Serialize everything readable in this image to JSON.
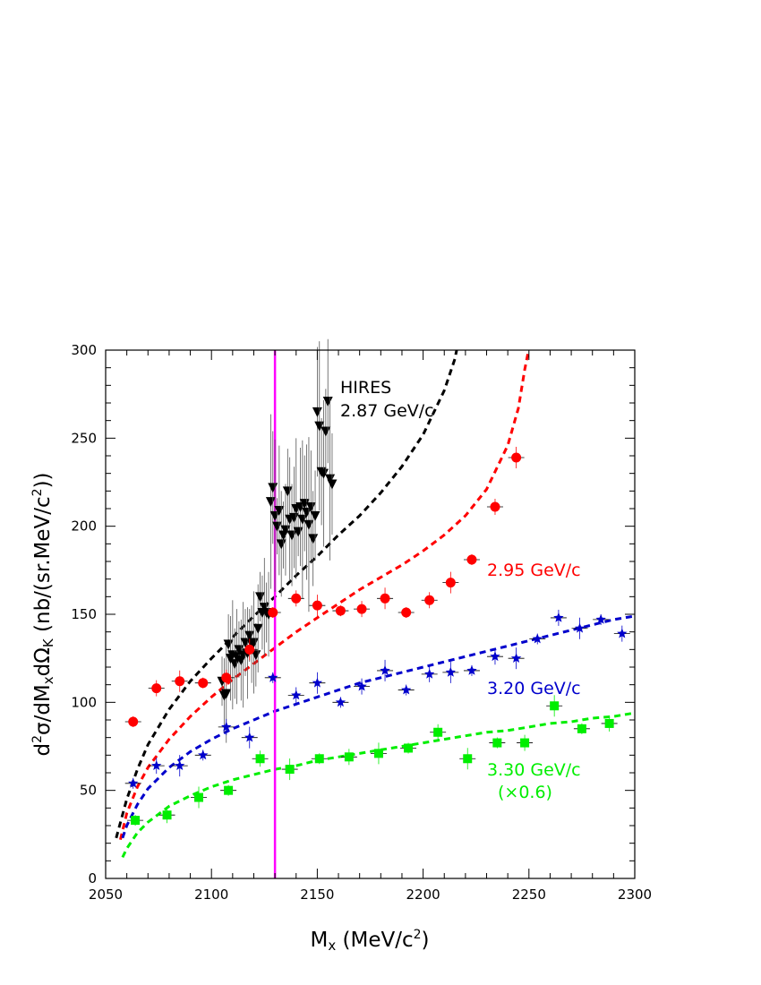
{
  "chart_data": {
    "type": "scatter",
    "xlabel": "M_x (MeV/c²)",
    "ylabel": "d²σ/dM_xdΩ_K (nb/(sr.MeV/c²))",
    "xlim": [
      2050,
      2300
    ],
    "ylim": [
      0,
      300
    ],
    "xticks": [
      2050,
      2100,
      2150,
      2200,
      2250,
      2300
    ],
    "yticks": [
      0,
      50,
      100,
      150,
      200,
      250,
      300
    ],
    "grid": false,
    "vline": {
      "x": 2130,
      "color": "#ff00ff"
    },
    "series": [
      {
        "name": "HIRES 2.87 GeV/c",
        "marker": "triangle-down",
        "color": "#000000",
        "label_lines": [
          "HIRES",
          "2.87 GeV/c"
        ],
        "points": [
          [
            2105,
            112
          ],
          [
            2106,
            104
          ],
          [
            2107,
            105
          ],
          [
            2108,
            133
          ],
          [
            2109,
            125
          ],
          [
            2110,
            127
          ],
          [
            2111,
            122
          ],
          [
            2112,
            126
          ],
          [
            2113,
            130
          ],
          [
            2114,
            124
          ],
          [
            2115,
            127
          ],
          [
            2116,
            134
          ],
          [
            2117,
            128
          ],
          [
            2118,
            138
          ],
          [
            2119,
            133
          ],
          [
            2120,
            134
          ],
          [
            2121,
            127
          ],
          [
            2122,
            142
          ],
          [
            2123,
            160
          ],
          [
            2124,
            151
          ],
          [
            2125,
            154
          ],
          [
            2126,
            151
          ],
          [
            2127,
            150
          ],
          [
            2128,
            214
          ],
          [
            2129,
            222
          ],
          [
            2130,
            206
          ],
          [
            2131,
            200
          ],
          [
            2132,
            209
          ],
          [
            2133,
            190
          ],
          [
            2134,
            195
          ],
          [
            2135,
            198
          ],
          [
            2136,
            220
          ],
          [
            2137,
            204
          ],
          [
            2138,
            195
          ],
          [
            2139,
            205
          ],
          [
            2140,
            210
          ],
          [
            2141,
            197
          ],
          [
            2142,
            211
          ],
          [
            2143,
            204
          ],
          [
            2144,
            213
          ],
          [
            2145,
            208
          ],
          [
            2146,
            201
          ],
          [
            2147,
            211
          ],
          [
            2148,
            193
          ],
          [
            2149,
            206
          ],
          [
            2150,
            265
          ],
          [
            2151,
            257
          ],
          [
            2152,
            231
          ],
          [
            2153,
            230
          ],
          [
            2154,
            254
          ],
          [
            2155,
            271
          ],
          [
            2156,
            227
          ],
          [
            2157,
            224
          ]
        ],
        "model_curve": [
          [
            2055,
            23
          ],
          [
            2060,
            45
          ],
          [
            2065,
            62
          ],
          [
            2070,
            76
          ],
          [
            2080,
            96
          ],
          [
            2090,
            112
          ],
          [
            2100,
            125
          ],
          [
            2110,
            137
          ],
          [
            2120,
            149
          ],
          [
            2130,
            160
          ],
          [
            2140,
            172
          ],
          [
            2150,
            183
          ],
          [
            2160,
            195
          ],
          [
            2170,
            206
          ],
          [
            2180,
            219
          ],
          [
            2190,
            234
          ],
          [
            2200,
            252
          ],
          [
            2210,
            277
          ],
          [
            2215,
            295
          ],
          [
            2220,
            325
          ],
          [
            2222,
            347
          ]
        ]
      },
      {
        "name": "2.95 GeV/c",
        "marker": "circle",
        "color": "#ff0000",
        "points": [
          [
            2063,
            89
          ],
          [
            2074,
            108
          ],
          [
            2085,
            112
          ],
          [
            2096,
            111
          ],
          [
            2107,
            114
          ],
          [
            2118,
            130
          ],
          [
            2129,
            151
          ],
          [
            2140,
            159
          ],
          [
            2150,
            155
          ],
          [
            2161,
            152
          ],
          [
            2171,
            153
          ],
          [
            2182,
            159
          ],
          [
            2192,
            151
          ],
          [
            2203,
            158
          ],
          [
            2213,
            168
          ],
          [
            2223,
            181
          ],
          [
            2234,
            211
          ],
          [
            2244,
            239
          ]
        ],
        "model_curve": [
          [
            2057,
            22
          ],
          [
            2060,
            37
          ],
          [
            2065,
            52
          ],
          [
            2070,
            63
          ],
          [
            2080,
            79
          ],
          [
            2090,
            92
          ],
          [
            2100,
            103
          ],
          [
            2110,
            113
          ],
          [
            2120,
            122
          ],
          [
            2130,
            131
          ],
          [
            2140,
            140
          ],
          [
            2150,
            148
          ],
          [
            2160,
            156
          ],
          [
            2170,
            164
          ],
          [
            2180,
            171
          ],
          [
            2190,
            178
          ],
          [
            2200,
            186
          ],
          [
            2210,
            195
          ],
          [
            2220,
            206
          ],
          [
            2230,
            221
          ],
          [
            2240,
            246
          ],
          [
            2245,
            267
          ],
          [
            2248,
            289
          ],
          [
            2250,
            301
          ]
        ]
      },
      {
        "name": "3.20 GeV/c",
        "marker": "star",
        "color": "#0000cc",
        "points": [
          [
            2063,
            54
          ],
          [
            2074,
            64
          ],
          [
            2085,
            64
          ],
          [
            2096,
            70
          ],
          [
            2107,
            86
          ],
          [
            2118,
            80
          ],
          [
            2129,
            114
          ],
          [
            2140,
            104
          ],
          [
            2150,
            111
          ],
          [
            2161,
            100
          ],
          [
            2171,
            109
          ],
          [
            2182,
            118
          ],
          [
            2192,
            107
          ],
          [
            2203,
            116
          ],
          [
            2213,
            117
          ],
          [
            2223,
            118
          ],
          [
            2234,
            126
          ],
          [
            2244,
            125
          ],
          [
            2254,
            136
          ],
          [
            2264,
            148
          ],
          [
            2274,
            142
          ],
          [
            2284,
            147
          ],
          [
            2294,
            139
          ]
        ],
        "model_curve": [
          [
            2058,
            23
          ],
          [
            2060,
            30
          ],
          [
            2065,
            42
          ],
          [
            2070,
            51
          ],
          [
            2080,
            63
          ],
          [
            2090,
            72
          ],
          [
            2100,
            79
          ],
          [
            2110,
            85
          ],
          [
            2120,
            90
          ],
          [
            2130,
            95
          ],
          [
            2140,
            99
          ],
          [
            2150,
            103
          ],
          [
            2160,
            107
          ],
          [
            2170,
            111
          ],
          [
            2180,
            114
          ],
          [
            2190,
            117
          ],
          [
            2200,
            120
          ],
          [
            2210,
            123
          ],
          [
            2220,
            126
          ],
          [
            2230,
            129
          ],
          [
            2240,
            132
          ],
          [
            2250,
            135
          ],
          [
            2260,
            138
          ],
          [
            2270,
            141
          ],
          [
            2280,
            144
          ],
          [
            2290,
            147
          ],
          [
            2300,
            149
          ]
        ]
      },
      {
        "name": "3.30 GeV/c (×0.6)",
        "marker": "square",
        "color": "#00ee00",
        "label_lines": [
          "3.30 GeV/c",
          "(×0.6)"
        ],
        "points": [
          [
            2064,
            33
          ],
          [
            2079,
            36
          ],
          [
            2094,
            46
          ],
          [
            2108,
            50
          ],
          [
            2123,
            68
          ],
          [
            2137,
            62
          ],
          [
            2151,
            68
          ],
          [
            2165,
            69
          ],
          [
            2179,
            71
          ],
          [
            2193,
            74
          ],
          [
            2207,
            83
          ],
          [
            2221,
            68
          ],
          [
            2235,
            77
          ],
          [
            2248,
            77
          ],
          [
            2262,
            98
          ],
          [
            2275,
            85
          ],
          [
            2288,
            88
          ]
        ],
        "model_curve": [
          [
            2058,
            12
          ],
          [
            2060,
            17
          ],
          [
            2065,
            26
          ],
          [
            2070,
            32
          ],
          [
            2080,
            41
          ],
          [
            2090,
            47
          ],
          [
            2100,
            52
          ],
          [
            2110,
            56
          ],
          [
            2120,
            59
          ],
          [
            2130,
            62
          ],
          [
            2140,
            64
          ],
          [
            2150,
            67
          ],
          [
            2160,
            69
          ],
          [
            2170,
            71
          ],
          [
            2180,
            73
          ],
          [
            2190,
            75
          ],
          [
            2200,
            77
          ],
          [
            2210,
            79
          ],
          [
            2220,
            81
          ],
          [
            2230,
            83
          ],
          [
            2240,
            84
          ],
          [
            2250,
            86
          ],
          [
            2260,
            88
          ],
          [
            2270,
            89
          ],
          [
            2280,
            91
          ],
          [
            2290,
            92
          ],
          [
            2300,
            94
          ]
        ]
      }
    ]
  }
}
